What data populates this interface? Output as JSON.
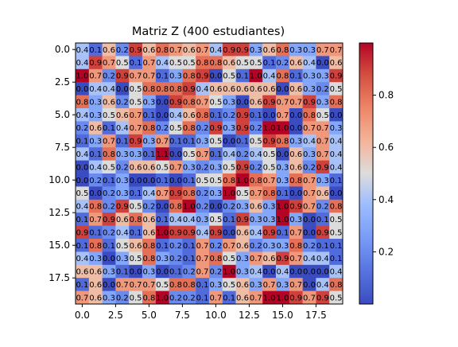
{
  "chart_data": {
    "type": "heatmap",
    "title": "Matriz Z (400 estudiantes)",
    "xlabel": "",
    "ylabel": "",
    "rows": 20,
    "cols": 20,
    "xlim": [
      -0.5,
      19.5
    ],
    "ylim": [
      19.5,
      -0.5
    ],
    "x_ticks": [
      0.0,
      2.5,
      5.0,
      7.5,
      10.0,
      12.5,
      15.0,
      17.5
    ],
    "x_tick_labels": [
      "0.0",
      "2.5",
      "5.0",
      "7.5",
      "10.0",
      "12.5",
      "15.0",
      "17.5"
    ],
    "y_ticks": [
      0.0,
      2.5,
      5.0,
      7.5,
      10.0,
      12.5,
      15.0,
      17.5
    ],
    "y_tick_labels": [
      "0.0",
      "2.5",
      "5.0",
      "7.5",
      "10.0",
      "12.5",
      "15.0",
      "17.5"
    ],
    "colormap": "coolwarm",
    "colorbar": {
      "vmin": 0.0,
      "vmax": 1.0,
      "ticks": [
        0.2,
        0.4,
        0.6,
        0.8
      ],
      "tick_labels": [
        "0.2",
        "0.4",
        "0.6",
        "0.8"
      ]
    },
    "cell_labels_shown": true,
    "label_decimals": 1,
    "values": [
      [
        0.4,
        0.1,
        0.6,
        0.2,
        0.9,
        0.6,
        0.8,
        0.7,
        0.6,
        0.7,
        0.4,
        0.9,
        0.9,
        0.3,
        0.6,
        0.8,
        0.3,
        0.3,
        0.7,
        0.7
      ],
      [
        0.4,
        0.9,
        0.7,
        0.5,
        0.1,
        0.7,
        0.4,
        0.5,
        0.5,
        0.8,
        0.8,
        0.6,
        0.5,
        0.5,
        0.1,
        0.2,
        0.6,
        0.4,
        0.0,
        0.6
      ],
      [
        1.0,
        0.7,
        0.2,
        0.9,
        0.7,
        0.7,
        0.1,
        0.3,
        0.8,
        0.9,
        0.0,
        0.5,
        0.1,
        1.0,
        0.4,
        0.8,
        0.1,
        0.3,
        0.3,
        0.9
      ],
      [
        0.0,
        0.4,
        0.4,
        0.0,
        0.5,
        0.8,
        0.8,
        0.8,
        0.9,
        0.4,
        0.6,
        0.6,
        0.6,
        0.6,
        0.6,
        0.0,
        0.6,
        0.3,
        0.2,
        0.5
      ],
      [
        0.8,
        0.3,
        0.6,
        0.2,
        0.5,
        0.3,
        0.0,
        0.9,
        0.8,
        0.7,
        0.5,
        0.3,
        0.0,
        0.6,
        0.9,
        0.7,
        0.7,
        0.9,
        0.3,
        0.8
      ],
      [
        0.4,
        0.3,
        0.5,
        0.6,
        0.7,
        0.1,
        0.0,
        0.4,
        0.6,
        0.8,
        0.1,
        0.2,
        0.9,
        0.1,
        0.0,
        0.7,
        0.0,
        0.8,
        0.5,
        0.0
      ],
      [
        0.2,
        0.6,
        0.1,
        0.4,
        0.7,
        0.8,
        0.2,
        0.5,
        0.8,
        0.2,
        0.9,
        0.3,
        0.9,
        0.2,
        1.0,
        1.0,
        0.0,
        0.7,
        0.7,
        0.3
      ],
      [
        0.1,
        0.3,
        0.7,
        0.1,
        0.9,
        0.3,
        0.7,
        0.1,
        0.1,
        0.3,
        0.5,
        0.0,
        0.1,
        0.5,
        0.9,
        0.8,
        0.3,
        0.4,
        0.7,
        0.4
      ],
      [
        0.4,
        0.1,
        0.8,
        0.3,
        0.3,
        0.1,
        1.1,
        0.0,
        0.5,
        0.7,
        0.1,
        0.4,
        0.2,
        0.4,
        0.5,
        0.0,
        0.6,
        0.3,
        0.7,
        0.4
      ],
      [
        0.0,
        0.4,
        0.5,
        0.2,
        0.6,
        0.6,
        0.5,
        0.7,
        0.3,
        0.2,
        0.3,
        0.5,
        0.9,
        0.2,
        0.5,
        0.3,
        0.6,
        0.2,
        0.9,
        0.4
      ],
      [
        0.0,
        0.2,
        0.1,
        0.3,
        0.0,
        0.0,
        0.1,
        0.0,
        0.1,
        0.5,
        0.5,
        0.8,
        1.0,
        0.8,
        0.7,
        0.3,
        0.8,
        0.7,
        0.3,
        0.1
      ],
      [
        0.5,
        0.0,
        0.2,
        0.3,
        0.1,
        0.4,
        0.7,
        0.9,
        0.8,
        0.2,
        0.3,
        1.0,
        0.5,
        0.7,
        0.8,
        0.1,
        0.0,
        0.7,
        0.6,
        0.0
      ],
      [
        0.4,
        0.8,
        0.2,
        0.9,
        0.5,
        0.2,
        0.0,
        0.8,
        1.0,
        0.2,
        0.0,
        0.2,
        0.3,
        0.6,
        0.3,
        1.0,
        0.9,
        0.7,
        0.2,
        0.8
      ],
      [
        0.1,
        0.7,
        0.9,
        0.6,
        0.8,
        0.6,
        0.1,
        0.4,
        0.4,
        0.3,
        0.5,
        0.1,
        0.9,
        0.3,
        0.3,
        1.0,
        0.3,
        0.0,
        0.1,
        0.5
      ],
      [
        0.9,
        0.1,
        0.2,
        0.4,
        0.1,
        0.6,
        1.0,
        0.9,
        0.9,
        0.4,
        0.9,
        0.0,
        0.6,
        0.4,
        0.9,
        0.1,
        0.7,
        0.0,
        0.9,
        0.5
      ],
      [
        0.1,
        0.8,
        0.1,
        0.5,
        0.6,
        0.8,
        0.1,
        0.2,
        0.1,
        0.7,
        0.2,
        0.7,
        0.6,
        0.2,
        0.3,
        0.3,
        0.8,
        0.2,
        0.1,
        0.1
      ],
      [
        0.4,
        0.3,
        0.0,
        0.3,
        0.5,
        0.8,
        0.3,
        0.2,
        0.1,
        0.7,
        0.8,
        0.5,
        0.3,
        0.7,
        0.6,
        0.9,
        0.7,
        0.4,
        0.4,
        0.1
      ],
      [
        0.6,
        0.6,
        0.3,
        0.1,
        0.0,
        0.3,
        0.0,
        0.1,
        0.2,
        0.7,
        0.2,
        1.0,
        0.3,
        0.4,
        0.0,
        0.4,
        0.0,
        0.0,
        0.0,
        0.4
      ],
      [
        0.1,
        0.6,
        0.0,
        0.7,
        0.7,
        0.7,
        0.5,
        0.8,
        0.8,
        0.1,
        0.3,
        0.5,
        0.6,
        0.3,
        0.7,
        0.3,
        0.7,
        0.0,
        0.4,
        0.8
      ],
      [
        0.7,
        0.6,
        0.3,
        0.2,
        0.5,
        0.8,
        1.0,
        0.2,
        0.2,
        0.1,
        0.7,
        0.1,
        0.6,
        0.7,
        1.0,
        1.0,
        0.9,
        0.7,
        0.9,
        0.5
      ]
    ]
  }
}
